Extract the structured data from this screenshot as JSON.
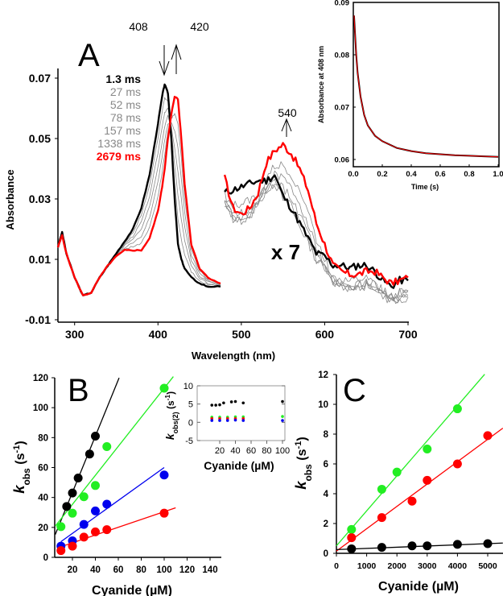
{
  "colors": {
    "black": "#000000",
    "gray": "#888888",
    "red": "#ff0000",
    "green": "#22ee22",
    "blue": "#0000ee"
  },
  "chart_data": [
    {
      "id": "A",
      "type": "line",
      "panel_label": "A",
      "xlabel": "Wavelength (nm)",
      "ylabel": "Absorbance",
      "xlim": [
        280,
        700
      ],
      "ylim": [
        -0.01,
        0.07
      ],
      "xticks": [
        300,
        400,
        500,
        600,
        700
      ],
      "yticks": [
        "0.07",
        "0.05",
        "0.03",
        "0.01",
        "-0.01"
      ],
      "legend": [
        {
          "label": "1.3 ms",
          "color": "#000000",
          "bold": true
        },
        {
          "label": "27 ms",
          "color": "#888888"
        },
        {
          "label": "52 ms",
          "color": "#888888"
        },
        {
          "label": "78 ms",
          "color": "#888888"
        },
        {
          "label": "157 ms",
          "color": "#888888"
        },
        {
          "label": "1338 ms",
          "color": "#888888"
        },
        {
          "label": "2679 ms",
          "color": "#ff0000",
          "bold": true
        }
      ],
      "annotations": {
        "peak1": "408",
        "peak2": "420",
        "peak3": "540",
        "scale": "x 7"
      },
      "soret_x": [
        280,
        285,
        290,
        300,
        310,
        320,
        330,
        340,
        350,
        360,
        370,
        380,
        390,
        400,
        405,
        408,
        412,
        416,
        420,
        424,
        428,
        432,
        440,
        450,
        460,
        475
      ],
      "soret_first": [
        0.014,
        0.019,
        0.012,
        0.004,
        -0.002,
        -0.001,
        0.004,
        0.008,
        0.012,
        0.016,
        0.02,
        0.027,
        0.038,
        0.055,
        0.064,
        0.068,
        0.065,
        0.05,
        0.03,
        0.015,
        0.01,
        0.007,
        0.004,
        0.002,
        0.001,
        0.001
      ],
      "soret_last": [
        0.014,
        0.018,
        0.012,
        0.004,
        -0.002,
        -0.001,
        0.004,
        0.008,
        0.011,
        0.013,
        0.013,
        0.013,
        0.017,
        0.026,
        0.034,
        0.04,
        0.05,
        0.058,
        0.064,
        0.063,
        0.05,
        0.035,
        0.015,
        0.007,
        0.004,
        0.002
      ],
      "q_x": [
        480,
        490,
        500,
        510,
        520,
        530,
        540,
        550,
        560,
        570,
        580,
        590,
        600,
        610,
        620,
        630,
        640,
        650,
        660,
        670,
        680,
        690,
        700
      ],
      "q_first": [
        0.032,
        0.033,
        0.034,
        0.035,
        0.036,
        0.036,
        0.038,
        0.031,
        0.027,
        0.022,
        0.017,
        0.012,
        0.011,
        0.008,
        0.008,
        0.007,
        0.008,
        0.008,
        0.006,
        0.003,
        0.001,
        0.003,
        0.003
      ],
      "q_last": [
        0.037,
        0.027,
        0.025,
        0.027,
        0.032,
        0.042,
        0.046,
        0.048,
        0.045,
        0.04,
        0.033,
        0.022,
        0.015,
        0.008,
        0.006,
        0.005,
        0.005,
        0.006,
        0.006,
        0.004,
        0.002,
        0.003,
        0.004
      ]
    },
    {
      "id": "A-inset",
      "type": "line",
      "xlabel": "Time (s)",
      "ylabel": "Absorbance at 408 nm",
      "xlim": [
        0,
        1
      ],
      "ylim": [
        0.06,
        0.09
      ],
      "xticks": [
        "0.0",
        "0.2",
        "0.4",
        "0.6",
        "0.8",
        "1.0"
      ],
      "yticks": [
        "0.09",
        "0.08",
        "0.07",
        "0.06"
      ],
      "series": [
        {
          "name": "data",
          "color": "#000000"
        },
        {
          "name": "fit",
          "color": "#ff0000"
        }
      ],
      "points": [
        [
          0.005,
          0.0875
        ],
        [
          0.01,
          0.085
        ],
        [
          0.02,
          0.08
        ],
        [
          0.03,
          0.0765
        ],
        [
          0.05,
          0.072
        ],
        [
          0.075,
          0.0685
        ],
        [
          0.1,
          0.0665
        ],
        [
          0.15,
          0.0645
        ],
        [
          0.2,
          0.0635
        ],
        [
          0.3,
          0.0622
        ],
        [
          0.4,
          0.0616
        ],
        [
          0.5,
          0.0612
        ],
        [
          0.6,
          0.061
        ],
        [
          0.7,
          0.0608
        ],
        [
          0.8,
          0.0607
        ],
        [
          0.9,
          0.0606
        ],
        [
          1.0,
          0.0605
        ]
      ]
    },
    {
      "id": "B",
      "type": "scatter",
      "panel_label": "B",
      "xlabel": "Cyanide (µM)",
      "ylabel": {
        "k": "k",
        "sub": "obs",
        "unit": " (s",
        "sup": "-1",
        "close": ")"
      },
      "xlim": [
        5,
        145
      ],
      "ylim": [
        0,
        120
      ],
      "xticks": [
        20,
        40,
        60,
        80,
        100,
        120,
        140
      ],
      "yticks": [
        0,
        20,
        40,
        60,
        80,
        100,
        120
      ],
      "series": [
        {
          "name": "black",
          "color": "#000000",
          "x": [
            15,
            20,
            25,
            35,
            40
          ],
          "y": [
            34,
            43,
            53,
            69,
            81
          ],
          "fit": {
            "slope": 1.88,
            "intercept": 5.8,
            "x": [
              5,
              60.7
            ]
          }
        },
        {
          "name": "green",
          "color": "#22ee22",
          "x": [
            10,
            20,
            30,
            40,
            50,
            100
          ],
          "y": [
            20.5,
            29.5,
            40.5,
            48,
            74,
            113
          ],
          "fit": {
            "slope": 0.97,
            "intercept": 16,
            "x": [
              5,
              108
            ]
          }
        },
        {
          "name": "blue",
          "color": "#0000ee",
          "x": [
            10,
            20,
            30,
            40,
            50,
            100
          ],
          "y": [
            7.5,
            11,
            22,
            31,
            35.5,
            55
          ],
          "fit": {
            "slope": 0.55,
            "intercept": 5,
            "x": [
              10,
              100
            ]
          }
        },
        {
          "name": "red",
          "color": "#ff0000",
          "x": [
            10,
            20,
            30,
            40,
            50,
            100
          ],
          "y": [
            4.5,
            7.5,
            13.5,
            17,
            18.5,
            29.5
          ],
          "fit": {
            "slope": 0.26,
            "intercept": 4.5,
            "x": [
              10,
              110
            ]
          }
        }
      ]
    },
    {
      "id": "B-inset",
      "type": "scatter",
      "xlabel": "Cyanide (µM)",
      "ylabel": {
        "k": "k",
        "sub": "obs(2)",
        "unit": " (s",
        "sup": "-1",
        "close": ")"
      },
      "xlim": [
        -9,
        103
      ],
      "ylim": [
        -5,
        10
      ],
      "xticks": [
        20,
        40,
        60,
        80,
        100
      ],
      "yticks": [
        10,
        5,
        0,
        -5
      ],
      "series": [
        {
          "name": "black",
          "color": "#000000",
          "x": [
            10,
            15,
            20,
            25,
            35,
            40,
            50,
            100
          ],
          "y": [
            4.7,
            4.7,
            4.8,
            5.3,
            5.6,
            5.7,
            5.3,
            5.7
          ]
        },
        {
          "name": "green",
          "color": "#22ee22",
          "x": [
            10,
            20,
            30,
            40,
            50,
            100
          ],
          "y": [
            1.4,
            1.4,
            1.4,
            1.5,
            1.5,
            1.6
          ]
        },
        {
          "name": "red",
          "color": "#ff0000",
          "x": [
            10,
            20,
            30,
            40,
            50
          ],
          "y": [
            1.0,
            1.0,
            1.0,
            1.0,
            1.0
          ]
        },
        {
          "name": "blue",
          "color": "#0000ee",
          "x": [
            10,
            20,
            30,
            40,
            50,
            100
          ],
          "y": [
            0.5,
            0.5,
            0.5,
            0.6,
            0.5,
            0.5
          ]
        }
      ]
    },
    {
      "id": "C",
      "type": "scatter",
      "panel_label": "C",
      "xlabel": "Cyanide (µM)",
      "ylabel": {
        "k": "k",
        "sub": "obs",
        "unit": " (s",
        "sup": "-1",
        "close": ")"
      },
      "xlim": [
        0,
        5500
      ],
      "ylim": [
        0,
        12
      ],
      "xticks": [
        0,
        1000,
        2000,
        3000,
        4000,
        5000
      ],
      "yticks": [
        0,
        2,
        4,
        6,
        8,
        10,
        12
      ],
      "series": [
        {
          "name": "green",
          "color": "#22ee22",
          "x": [
            500,
            1500,
            2000,
            3000,
            4000
          ],
          "y": [
            1.6,
            4.3,
            5.45,
            7.0,
            9.7
          ],
          "fit": {
            "slope": 0.00235,
            "intercept": 0.5,
            "x": [
              0,
              4900
            ]
          }
        },
        {
          "name": "red",
          "color": "#ff0000",
          "x": [
            500,
            1500,
            2500,
            3000,
            4000,
            5000
          ],
          "y": [
            1.05,
            2.4,
            3.5,
            4.9,
            6.0,
            7.9
          ],
          "fit": {
            "slope": 0.0015,
            "intercept": 0.15,
            "x": [
              0,
              5500
            ]
          }
        },
        {
          "name": "black",
          "color": "#000000",
          "x": [
            500,
            1500,
            2500,
            3000,
            4000,
            5000
          ],
          "y": [
            0.3,
            0.4,
            0.5,
            0.5,
            0.6,
            0.65
          ],
          "fit": {
            "slope": 8e-05,
            "intercept": 0.25,
            "x": [
              0,
              5500
            ]
          }
        }
      ]
    }
  ]
}
